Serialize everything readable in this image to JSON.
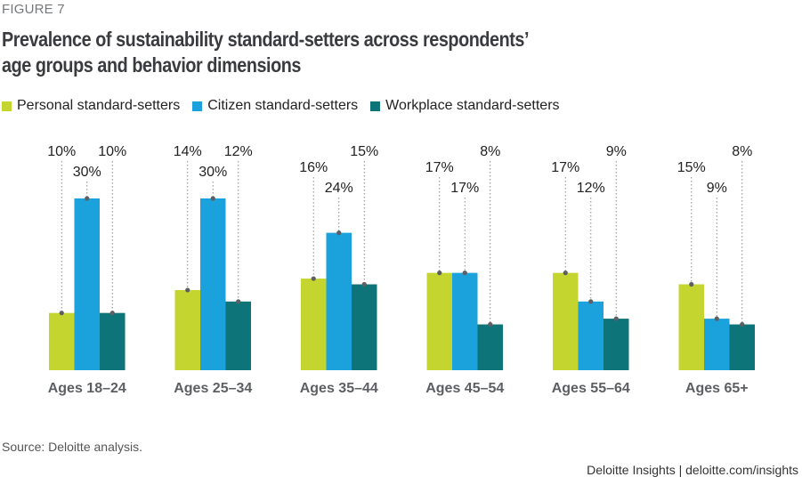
{
  "figure_label": "FIGURE 7",
  "source": "Source: Deloitte analysis.",
  "credit": "Deloitte Insights | deloitte.com/insights",
  "chart_data": {
    "type": "bar",
    "title": "Prevalence of sustainability standard-setters across respondents’ age groups and behavior dimensions",
    "title_lines": [
      "Prevalence of sustainability standard-setters across respondents’",
      "age groups and behavior dimensions"
    ],
    "xlabel": "",
    "ylabel": "",
    "ylim": [
      0,
      30
    ],
    "grid": false,
    "legend_position": "top-left",
    "categories": [
      "Ages 18–24",
      "Ages 25–34",
      "Ages 35–44",
      "Ages 45–54",
      "Ages 55–64",
      "Ages 65+"
    ],
    "series": [
      {
        "name": "Personal standard-setters",
        "color": "#c4d52f",
        "values": [
          10,
          14,
          16,
          17,
          17,
          15
        ],
        "labels": [
          "10%",
          "14%",
          "16%",
          "17%",
          "17%",
          "15%"
        ]
      },
      {
        "name": "Citizen standard-setters",
        "color": "#1ba1dc",
        "values": [
          30,
          30,
          24,
          17,
          12,
          9
        ],
        "labels": [
          "30%",
          "30%",
          "24%",
          "17%",
          "12%",
          "9%"
        ]
      },
      {
        "name": "Workplace standard-setters",
        "color": "#0d747a",
        "values": [
          10,
          12,
          15,
          8,
          9,
          8
        ],
        "labels": [
          "10%",
          "12%",
          "15%",
          "8%",
          "9%",
          "8%"
        ]
      }
    ]
  }
}
